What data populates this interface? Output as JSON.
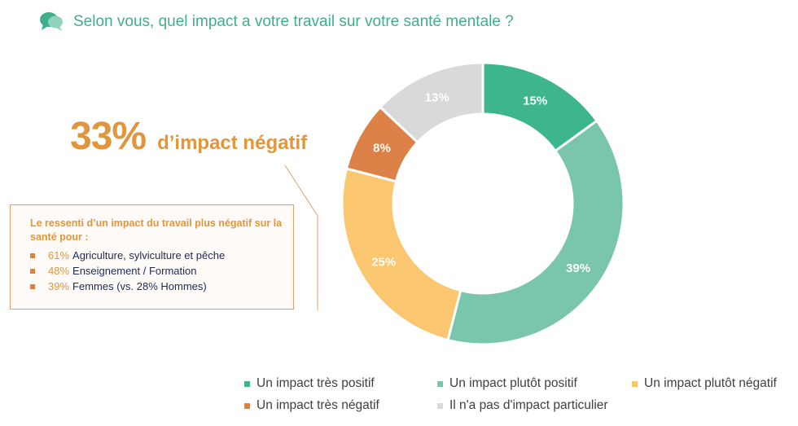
{
  "header": {
    "title": "Selon vous, quel impact a votre travail sur votre santé mentale ?"
  },
  "highlight": {
    "value": "33%",
    "text": "d’impact négatif"
  },
  "callout": {
    "heading": "Le ressenti d’un impact du travail plus négatif sur la santé pour :",
    "items": [
      {
        "pct": "61%",
        "label": "Agriculture, sylviculture et pêche"
      },
      {
        "pct": "48%",
        "label": "Enseignement / Formation"
      },
      {
        "pct": "39%",
        "label": "Femmes (vs. 28% Hommes)"
      }
    ]
  },
  "chart_data": {
    "type": "pie",
    "donut": true,
    "categories": [
      "Un impact très positif",
      "Un impact plutôt positif",
      "Un impact plutôt négatif",
      "Un impact très négatif",
      "Il n'a pas d'impact particulier"
    ],
    "values": [
      15,
      39,
      25,
      8,
      13
    ],
    "data_labels": [
      "15%",
      "39%",
      "25%",
      "8%",
      "13%"
    ],
    "colors": [
      "#3db68e",
      "#79c6ad",
      "#fbc670",
      "#dc8249",
      "#d9d9d9"
    ],
    "legend_position": "bottom"
  },
  "colors": {
    "accent": "#3fae8c",
    "highlight": "#e0963e"
  }
}
